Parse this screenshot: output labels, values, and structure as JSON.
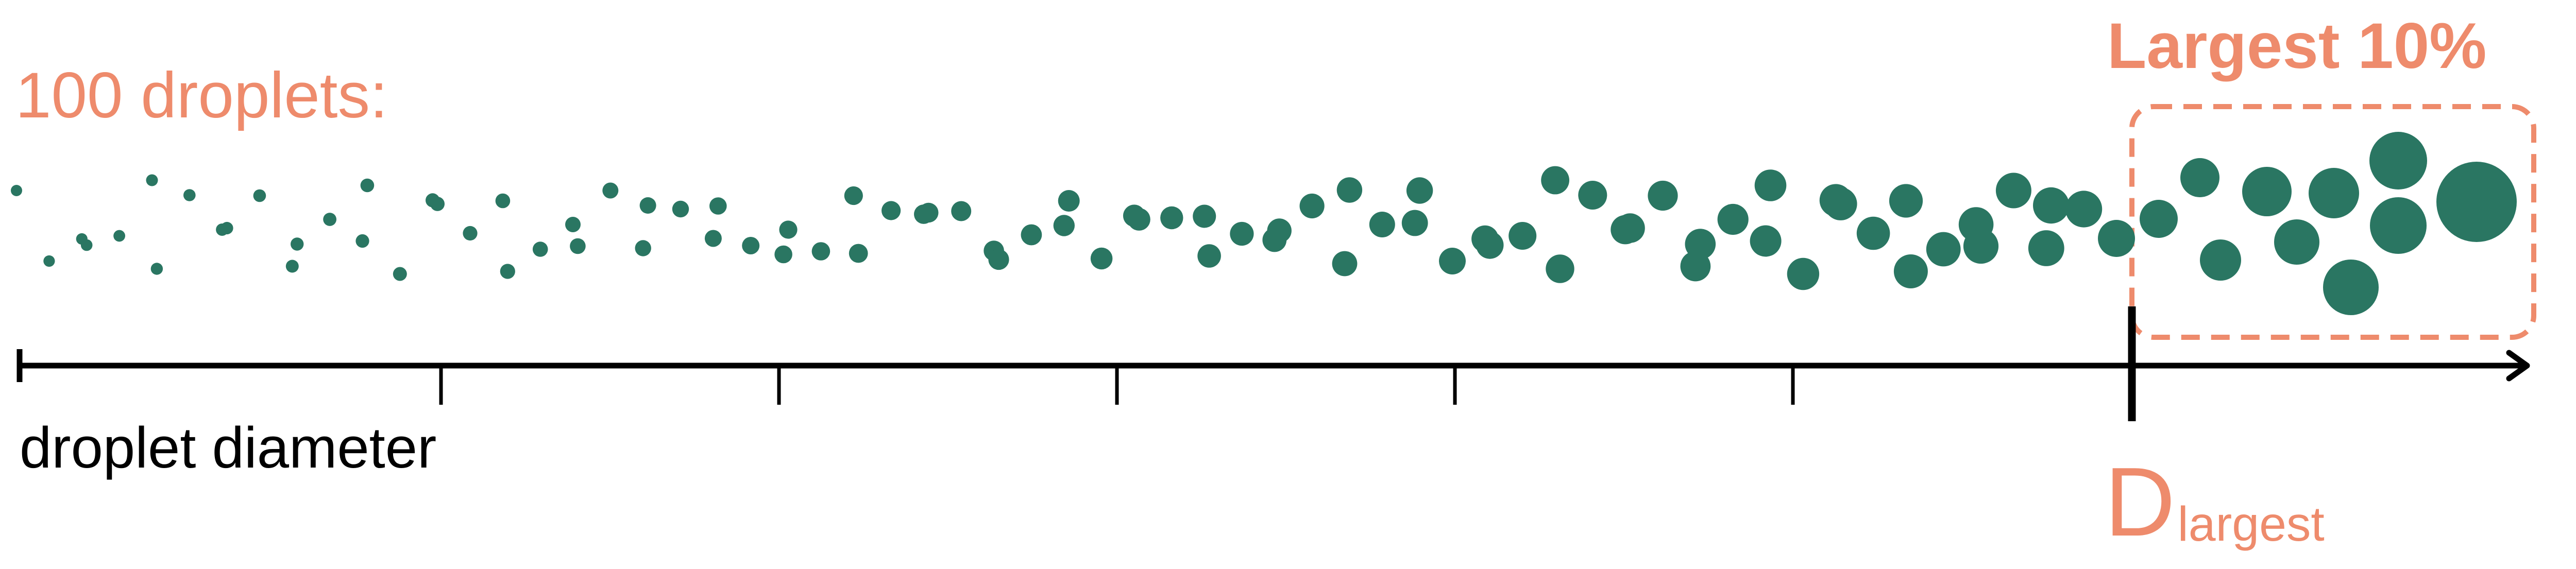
{
  "title_label": "100 droplets:",
  "highlight_label": "Largest 10%",
  "axis_label": "droplet diameter",
  "marker_label": {
    "main": "D",
    "subscript": "largest"
  },
  "droplet_count": 100,
  "highlight_fraction": 0.1,
  "colors": {
    "droplet": "#2a7662",
    "accent": "#ee8b6c",
    "axis": "#000000"
  }
}
